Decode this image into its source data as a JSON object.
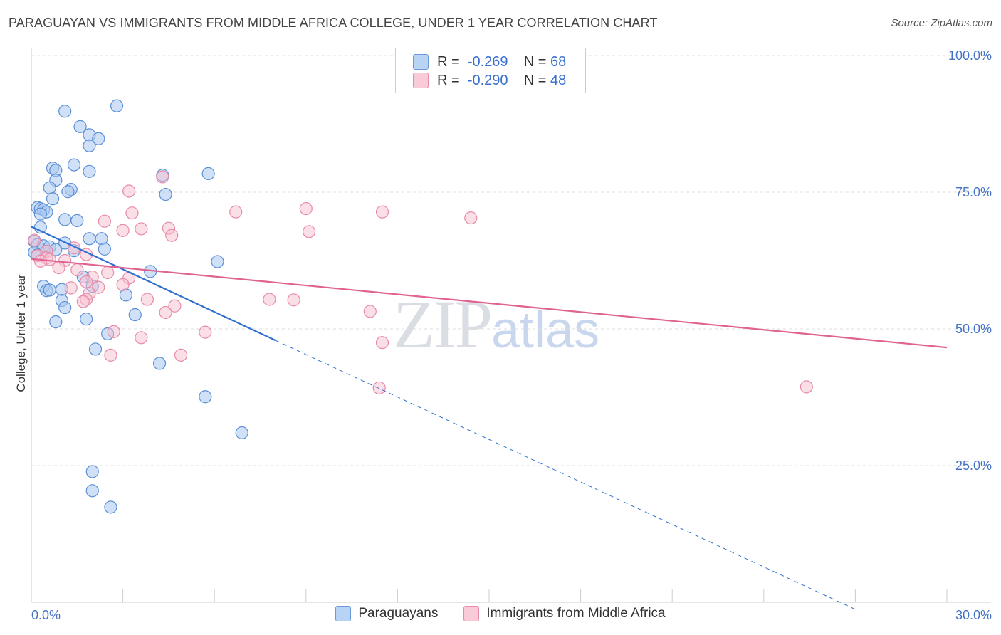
{
  "header": {
    "title": "PARAGUAYAN VS IMMIGRANTS FROM MIDDLE AFRICA COLLEGE, UNDER 1 YEAR CORRELATION CHART",
    "source": "Source: ZipAtlas.com"
  },
  "watermark": {
    "zip": "ZIP",
    "atlas": "atlas"
  },
  "legend": {
    "rows": [
      {
        "r_label": "R =",
        "r_value": "-0.269",
        "n_label": "N =",
        "n_value": "68"
      },
      {
        "r_label": "R =",
        "r_value": "-0.290",
        "n_label": "N =",
        "n_value": "48"
      }
    ]
  },
  "bottom_legend": {
    "series1": "Paraguayans",
    "series2": "Immigrants from Middle Africa"
  },
  "colors": {
    "blue_fill": "#a9c8f0",
    "blue_stroke": "#5b8fd6",
    "blue_line": "#2f6fce",
    "pink_fill": "#f7bfd0",
    "pink_stroke": "#e88aa8",
    "pink_line": "#e0628f",
    "grid": "#dddddd",
    "axis_text": "#4472c4"
  },
  "chart_data": {
    "type": "scatter",
    "title": "PARAGUAYAN VS IMMIGRANTS FROM MIDDLE AFRICA COLLEGE, UNDER 1 YEAR CORRELATION CHART",
    "xlabel": "",
    "ylabel": "College, Under 1 year",
    "xlim": [
      0,
      30
    ],
    "ylim": [
      0,
      100
    ],
    "x_tick_labels": [
      "0.0%",
      "30.0%"
    ],
    "y_ticks": [
      25,
      50,
      75,
      100
    ],
    "y_tick_labels": [
      "25.0%",
      "50.0%",
      "75.0%",
      "100.0%"
    ],
    "grid": true,
    "legend_position": "top-center",
    "series": [
      {
        "name": "Paraguayans",
        "r": -0.269,
        "n": 68,
        "trend": {
          "x_start": 0,
          "y_start": 68.7,
          "x_end": 8.0,
          "y_end": 47.9,
          "dashed_to_x": 27.0,
          "dashed_to_y": -1.3
        },
        "points": [
          [
            2.8,
            90.8
          ],
          [
            1.1,
            89.8
          ],
          [
            1.6,
            87.0
          ],
          [
            1.9,
            85.5
          ],
          [
            2.2,
            84.8
          ],
          [
            1.9,
            83.5
          ],
          [
            1.4,
            80.0
          ],
          [
            0.7,
            79.4
          ],
          [
            0.8,
            79.0
          ],
          [
            1.9,
            78.8
          ],
          [
            5.8,
            78.4
          ],
          [
            4.3,
            78.1
          ],
          [
            0.8,
            77.2
          ],
          [
            0.6,
            75.8
          ],
          [
            1.3,
            75.5
          ],
          [
            1.2,
            75.1
          ],
          [
            4.4,
            74.6
          ],
          [
            0.7,
            73.8
          ],
          [
            0.2,
            72.2
          ],
          [
            0.3,
            72.0
          ],
          [
            0.4,
            71.8
          ],
          [
            0.5,
            71.4
          ],
          [
            0.3,
            71.0
          ],
          [
            1.1,
            70.0
          ],
          [
            1.5,
            69.8
          ],
          [
            0.3,
            68.6
          ],
          [
            0.1,
            66.0
          ],
          [
            0.2,
            65.4
          ],
          [
            1.9,
            66.5
          ],
          [
            2.3,
            66.5
          ],
          [
            1.1,
            65.7
          ],
          [
            0.4,
            65.2
          ],
          [
            0.6,
            65.0
          ],
          [
            0.8,
            64.5
          ],
          [
            0.5,
            64.2
          ],
          [
            2.4,
            64.6
          ],
          [
            1.4,
            64.3
          ],
          [
            0.1,
            64.0
          ],
          [
            0.2,
            63.5
          ],
          [
            6.1,
            62.3
          ],
          [
            3.9,
            60.5
          ],
          [
            1.7,
            59.5
          ],
          [
            2.0,
            57.8
          ],
          [
            0.4,
            57.8
          ],
          [
            0.5,
            57.0
          ],
          [
            1.0,
            57.2
          ],
          [
            0.6,
            57.1
          ],
          [
            3.1,
            56.2
          ],
          [
            1.0,
            55.2
          ],
          [
            1.1,
            53.9
          ],
          [
            3.4,
            52.6
          ],
          [
            1.8,
            51.8
          ],
          [
            0.8,
            51.3
          ],
          [
            2.5,
            49.1
          ],
          [
            2.1,
            46.3
          ],
          [
            4.2,
            43.7
          ],
          [
            5.7,
            37.6
          ],
          [
            6.9,
            31.0
          ],
          [
            2.0,
            23.9
          ],
          [
            2.0,
            20.4
          ],
          [
            2.6,
            17.4
          ]
        ]
      },
      {
        "name": "Immigrants from Middle Africa",
        "r": -0.29,
        "n": 48,
        "trend": {
          "x_start": 0,
          "y_start": 62.8,
          "x_end": 30.0,
          "y_end": 46.6
        },
        "points": [
          [
            4.3,
            77.8
          ],
          [
            3.2,
            75.2
          ],
          [
            6.7,
            71.4
          ],
          [
            9.0,
            72.0
          ],
          [
            11.5,
            71.4
          ],
          [
            14.4,
            70.3
          ],
          [
            3.3,
            71.2
          ],
          [
            2.4,
            69.7
          ],
          [
            4.5,
            68.4
          ],
          [
            3.6,
            68.3
          ],
          [
            3.0,
            68.0
          ],
          [
            9.1,
            67.8
          ],
          [
            4.6,
            67.1
          ],
          [
            0.1,
            66.2
          ],
          [
            1.4,
            64.8
          ],
          [
            0.5,
            64.2
          ],
          [
            1.8,
            63.6
          ],
          [
            0.2,
            63.4
          ],
          [
            0.5,
            63.0
          ],
          [
            0.6,
            62.7
          ],
          [
            1.1,
            62.5
          ],
          [
            0.3,
            62.4
          ],
          [
            0.9,
            61.2
          ],
          [
            1.5,
            60.8
          ],
          [
            2.5,
            60.3
          ],
          [
            2.0,
            59.5
          ],
          [
            3.2,
            59.3
          ],
          [
            1.8,
            58.6
          ],
          [
            3.0,
            58.1
          ],
          [
            2.2,
            57.6
          ],
          [
            1.3,
            57.5
          ],
          [
            1.9,
            56.5
          ],
          [
            1.8,
            55.4
          ],
          [
            3.8,
            55.4
          ],
          [
            7.8,
            55.4
          ],
          [
            8.6,
            55.3
          ],
          [
            1.7,
            55.0
          ],
          [
            4.7,
            54.2
          ],
          [
            4.4,
            53.0
          ],
          [
            11.1,
            53.2
          ],
          [
            2.7,
            49.5
          ],
          [
            5.7,
            49.4
          ],
          [
            3.6,
            48.4
          ],
          [
            11.5,
            47.5
          ],
          [
            2.6,
            45.2
          ],
          [
            4.9,
            45.2
          ],
          [
            11.4,
            39.2
          ],
          [
            25.4,
            39.4
          ]
        ]
      }
    ]
  }
}
